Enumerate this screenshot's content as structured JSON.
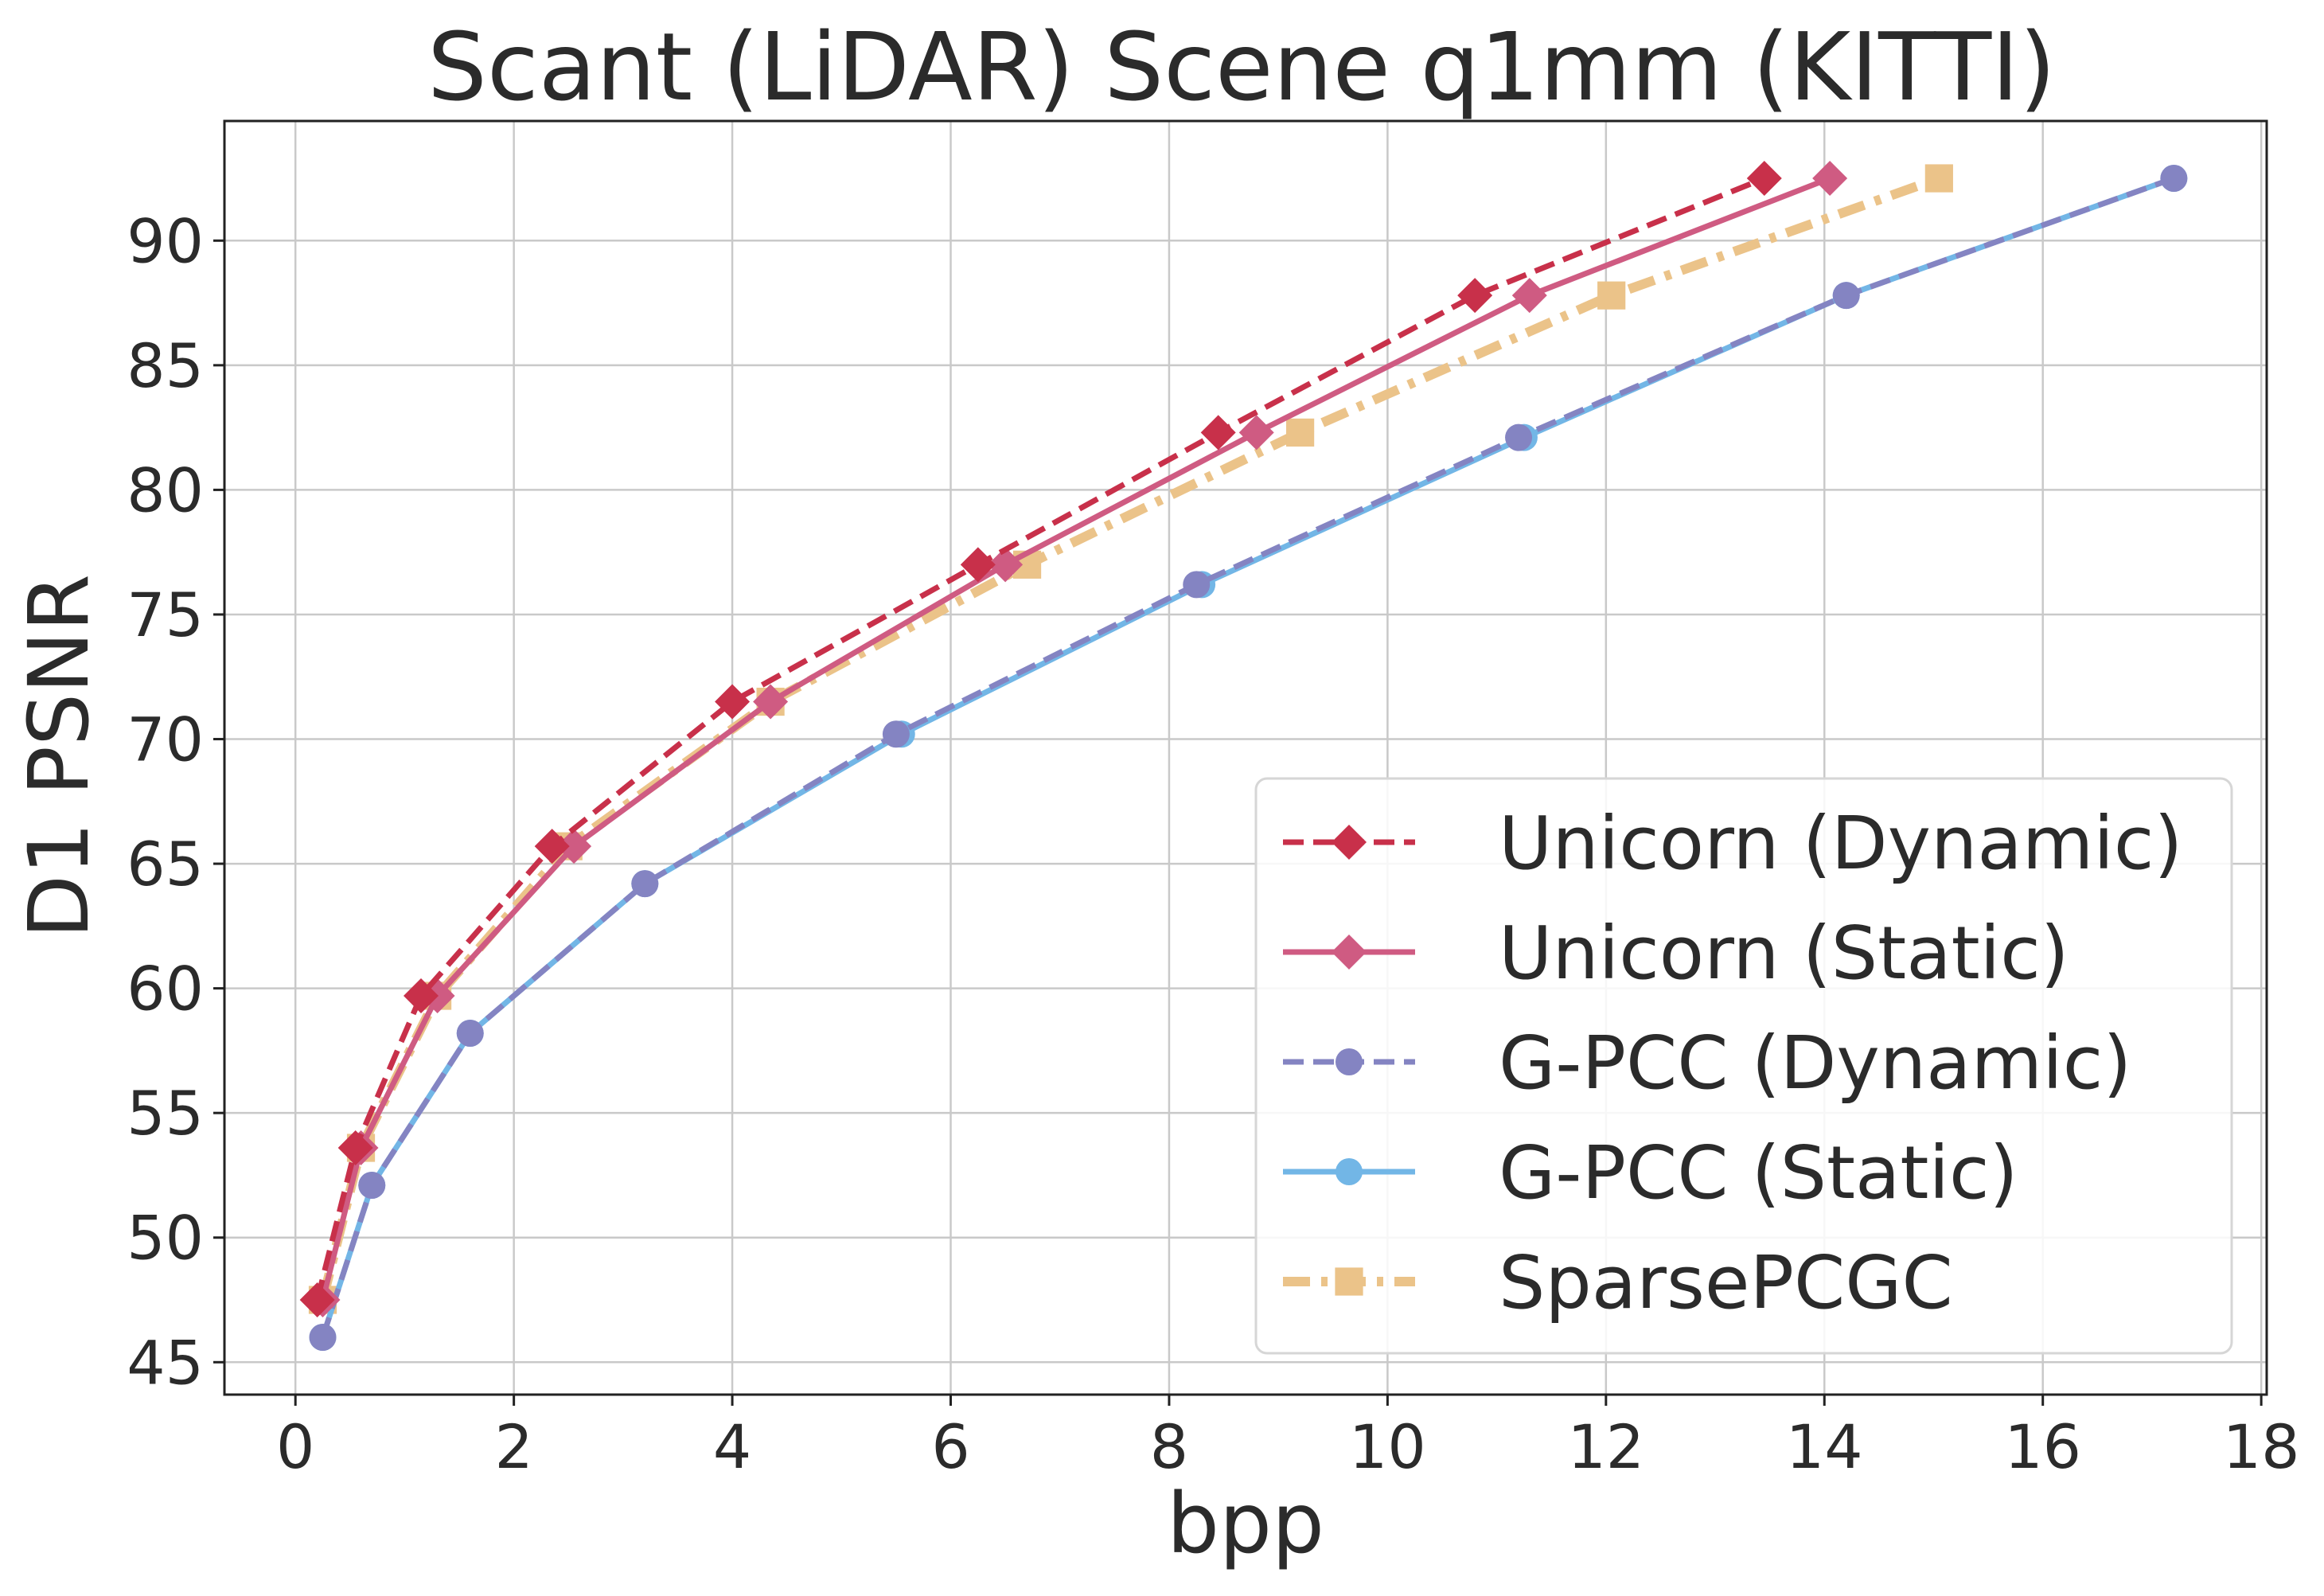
{
  "chart_data": {
    "type": "line",
    "title": "Scant (LiDAR) Scene q1mm (KITTI)",
    "xlabel": "bpp",
    "ylabel": "D1 PSNR",
    "xlim": [
      -0.65,
      18.05
    ],
    "ylim": [
      43.7,
      94.8
    ],
    "xticks": [
      0,
      2,
      4,
      6,
      8,
      10,
      12,
      14,
      16,
      18
    ],
    "yticks": [
      45,
      50,
      55,
      60,
      65,
      70,
      75,
      80,
      85,
      90
    ],
    "grid": true,
    "legend_position": "lower-right",
    "series": [
      {
        "name": "Unicorn (Dynamic)",
        "color": "#c8304a",
        "line_style": "dashed",
        "marker": "diamond",
        "x": [
          0.2,
          0.55,
          1.15,
          2.35,
          4.0,
          6.25,
          8.45,
          10.8,
          13.45
        ],
        "y": [
          47.5,
          53.6,
          59.7,
          65.7,
          71.5,
          77.0,
          82.3,
          87.8,
          92.5
        ]
      },
      {
        "name": "Unicorn (Static)",
        "color": "#cf5b82",
        "line_style": "solid",
        "marker": "diamond",
        "x": [
          0.25,
          0.6,
          1.3,
          2.55,
          4.35,
          6.5,
          8.8,
          11.3,
          14.05
        ],
        "y": [
          47.5,
          53.6,
          59.7,
          65.7,
          71.5,
          77.0,
          82.3,
          87.8,
          92.5
        ]
      },
      {
        "name": "G-PCC (Dynamic)",
        "color": "#8484c2",
        "line_style": "dashed",
        "marker": "circle",
        "x": [
          0.25,
          0.7,
          1.6,
          3.2,
          5.5,
          8.25,
          11.2,
          14.2,
          17.2
        ],
        "y": [
          46.0,
          52.1,
          58.2,
          64.2,
          70.2,
          76.2,
          82.1,
          87.8,
          92.5
        ]
      },
      {
        "name": "G-PCC (Static)",
        "color": "#72b6e6",
        "line_style": "solid",
        "marker": "circle",
        "x": [
          0.25,
          0.7,
          1.6,
          3.2,
          5.55,
          8.3,
          11.25,
          14.2,
          17.2
        ],
        "y": [
          46.0,
          52.1,
          58.2,
          64.2,
          70.2,
          76.2,
          82.1,
          87.8,
          92.5
        ]
      },
      {
        "name": "SparsePCGC",
        "color": "#ebc389",
        "line_style": "dashdot",
        "marker": "square",
        "x": [
          0.25,
          0.6,
          1.3,
          2.5,
          4.35,
          6.7,
          9.2,
          12.05,
          15.05
        ],
        "y": [
          47.5,
          53.6,
          59.7,
          65.7,
          71.5,
          77.0,
          82.3,
          87.8,
          92.5
        ]
      }
    ]
  }
}
